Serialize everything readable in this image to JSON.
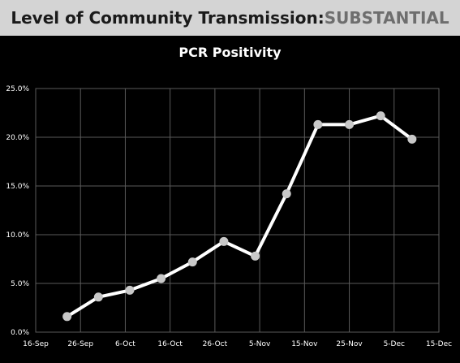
{
  "banner": {
    "prefix": "Level of Community Transmission: ",
    "level": "SUBSTANTIAL"
  },
  "colors": {
    "banner_bg": "#d4d4d4",
    "banner_text": "#1a1a1a",
    "level_text": "#6e6e6e",
    "background": "#000000",
    "line": "#ffffff",
    "marker": "#c8c8c8",
    "grid": "#5a5a5a"
  },
  "chart_data": {
    "type": "line",
    "title": "PCR Positivity",
    "xlabel": "",
    "ylabel": "",
    "x_tick_labels": [
      "16-Sep",
      "26-Sep",
      "6-Oct",
      "16-Oct",
      "26-Oct",
      "5-Nov",
      "15-Nov",
      "25-Nov",
      "5-Dec",
      "15-Dec"
    ],
    "y_tick_labels": [
      "0.0%",
      "5.0%",
      "10.0%",
      "15.0%",
      "20.0%",
      "25.0%"
    ],
    "x_range": [
      "2020-09-16",
      "2020-12-15"
    ],
    "ylim": [
      0,
      25
    ],
    "y_unit": "%",
    "grid": true,
    "legend": "none",
    "series": [
      {
        "points": [
          {
            "x": "2020-09-23",
            "y": 1.6
          },
          {
            "x": "2020-09-30",
            "y": 3.6
          },
          {
            "x": "2020-10-07",
            "y": 4.3
          },
          {
            "x": "2020-10-14",
            "y": 5.5
          },
          {
            "x": "2020-10-21",
            "y": 7.2
          },
          {
            "x": "2020-10-28",
            "y": 9.3
          },
          {
            "x": "2020-11-04",
            "y": 7.8
          },
          {
            "x": "2020-11-11",
            "y": 14.2
          },
          {
            "x": "2020-11-18",
            "y": 21.3
          },
          {
            "x": "2020-11-25",
            "y": 21.3
          },
          {
            "x": "2020-12-02",
            "y": 22.2
          },
          {
            "x": "2020-12-09",
            "y": 19.8
          }
        ]
      }
    ]
  }
}
